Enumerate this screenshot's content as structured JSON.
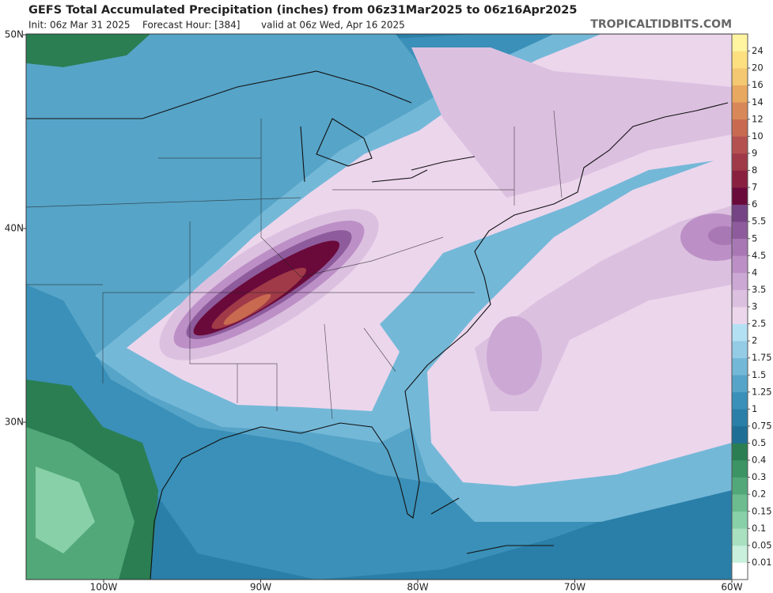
{
  "header": {
    "title": "GEFS Total Accumulated Precipitation (inches) from 06z31Mar2025 to 06z16Apr2025",
    "init": "Init: 06z Mar 31 2025",
    "forecast_hour": "Forecast Hour: [384]",
    "valid": "valid at 06z Wed, Apr 16 2025",
    "source": "TROPICALTIDBITS.COM"
  },
  "map": {
    "lat_labels": [
      "50N",
      "40N",
      "30N"
    ],
    "lon_labels": [
      "100W",
      "90W",
      "80W",
      "70W",
      "60W"
    ]
  },
  "colorbar": {
    "levels": [
      0.01,
      0.05,
      0.1,
      0.15,
      0.2,
      0.3,
      0.4,
      0.5,
      0.75,
      1,
      1.25,
      1.5,
      1.75,
      2,
      2.5,
      3,
      3.5,
      4,
      4.5,
      5,
      5.5,
      6,
      7,
      8,
      9,
      10,
      12,
      14,
      16,
      20,
      24
    ],
    "colors": [
      "#ffffff",
      "#c8f0dc",
      "#a8e0c0",
      "#88d0a8",
      "#6cbc90",
      "#52a878",
      "#3c9464",
      "#2a7e52",
      "#1e6e96",
      "#2a7fa8",
      "#3a90b8",
      "#56a4c8",
      "#74b8d8",
      "#94cce6",
      "#b4e0f4",
      "#ecd6ec",
      "#dcc0e0",
      "#cca8d4",
      "#bc90c6",
      "#a878b4",
      "#8e5c9c",
      "#744484",
      "#6a0a3a",
      "#8a2040",
      "#a03a48",
      "#b45050",
      "#c86a50",
      "#d88858",
      "#e8a860",
      "#f4c870",
      "#fce080",
      "#fff4a0"
    ]
  }
}
